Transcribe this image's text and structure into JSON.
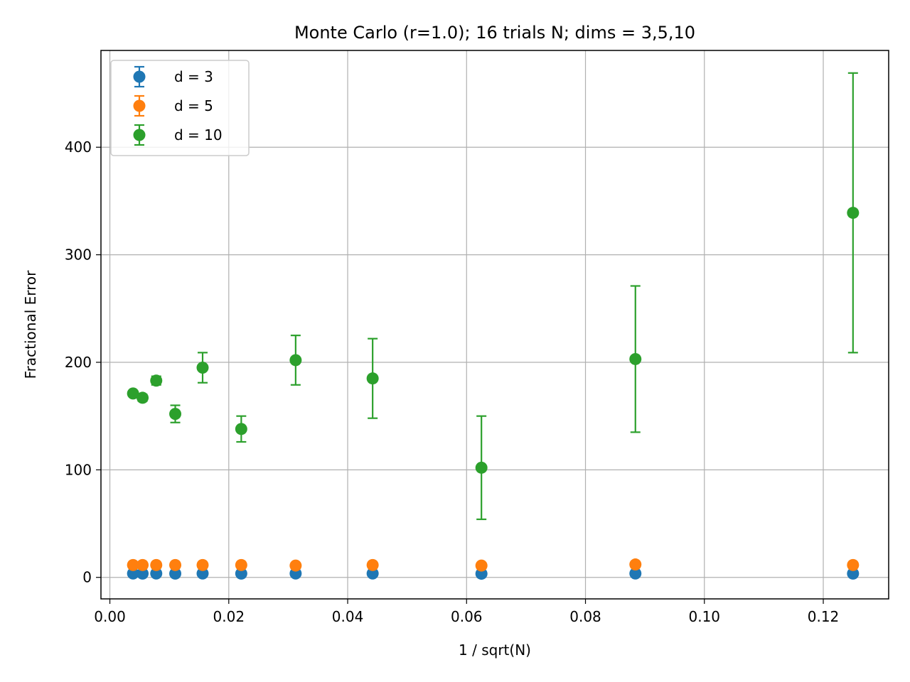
{
  "chart_data": {
    "type": "scatter",
    "title": "Monte Carlo (r=1.0); 16 trials N; dims = 3,5,10",
    "xlabel": "1 / sqrt(N)",
    "ylabel": "Fractional Error",
    "xlim": [
      -0.0015,
      0.131
    ],
    "ylim": [
      -20,
      490
    ],
    "xticks": [
      0.0,
      0.02,
      0.04,
      0.06,
      0.08,
      0.1,
      0.12
    ],
    "xtick_labels": [
      "0.00",
      "0.02",
      "0.04",
      "0.06",
      "0.08",
      "0.10",
      "0.12"
    ],
    "yticks": [
      0,
      100,
      200,
      300,
      400
    ],
    "ytick_labels": [
      "0",
      "100",
      "200",
      "300",
      "400"
    ],
    "grid": true,
    "legend_position": "top-left",
    "x": [
      0.125,
      0.0884,
      0.0625,
      0.0442,
      0.03125,
      0.0221,
      0.0156,
      0.011,
      0.0078,
      0.0055,
      0.0039
    ],
    "series": [
      {
        "name": "d = 3",
        "color": "#1f77b4",
        "values": [
          3.5,
          3.6,
          3.4,
          3.6,
          3.6,
          3.5,
          3.6,
          3.5,
          3.6,
          3.5,
          3.6
        ],
        "errors": [
          0.4,
          0.4,
          0.3,
          0.3,
          0.2,
          0.2,
          0.1,
          0.1,
          0.1,
          0.1,
          0.1
        ]
      },
      {
        "name": "d = 5",
        "color": "#ff7f0e",
        "values": [
          11.5,
          12.0,
          11.0,
          11.5,
          11.0,
          11.5,
          11.5,
          11.5,
          11.5,
          11.5,
          11.5
        ],
        "errors": [
          1.5,
          1.3,
          1.0,
          0.8,
          0.6,
          0.5,
          0.4,
          0.3,
          0.2,
          0.2,
          0.1
        ]
      },
      {
        "name": "d = 10",
        "color": "#2ca02c",
        "values": [
          339,
          203,
          102,
          185,
          202,
          138,
          195,
          152,
          183,
          167,
          171
        ],
        "errors": [
          130,
          68,
          48,
          37,
          23,
          12,
          14,
          8,
          4,
          3,
          2
        ]
      }
    ]
  }
}
